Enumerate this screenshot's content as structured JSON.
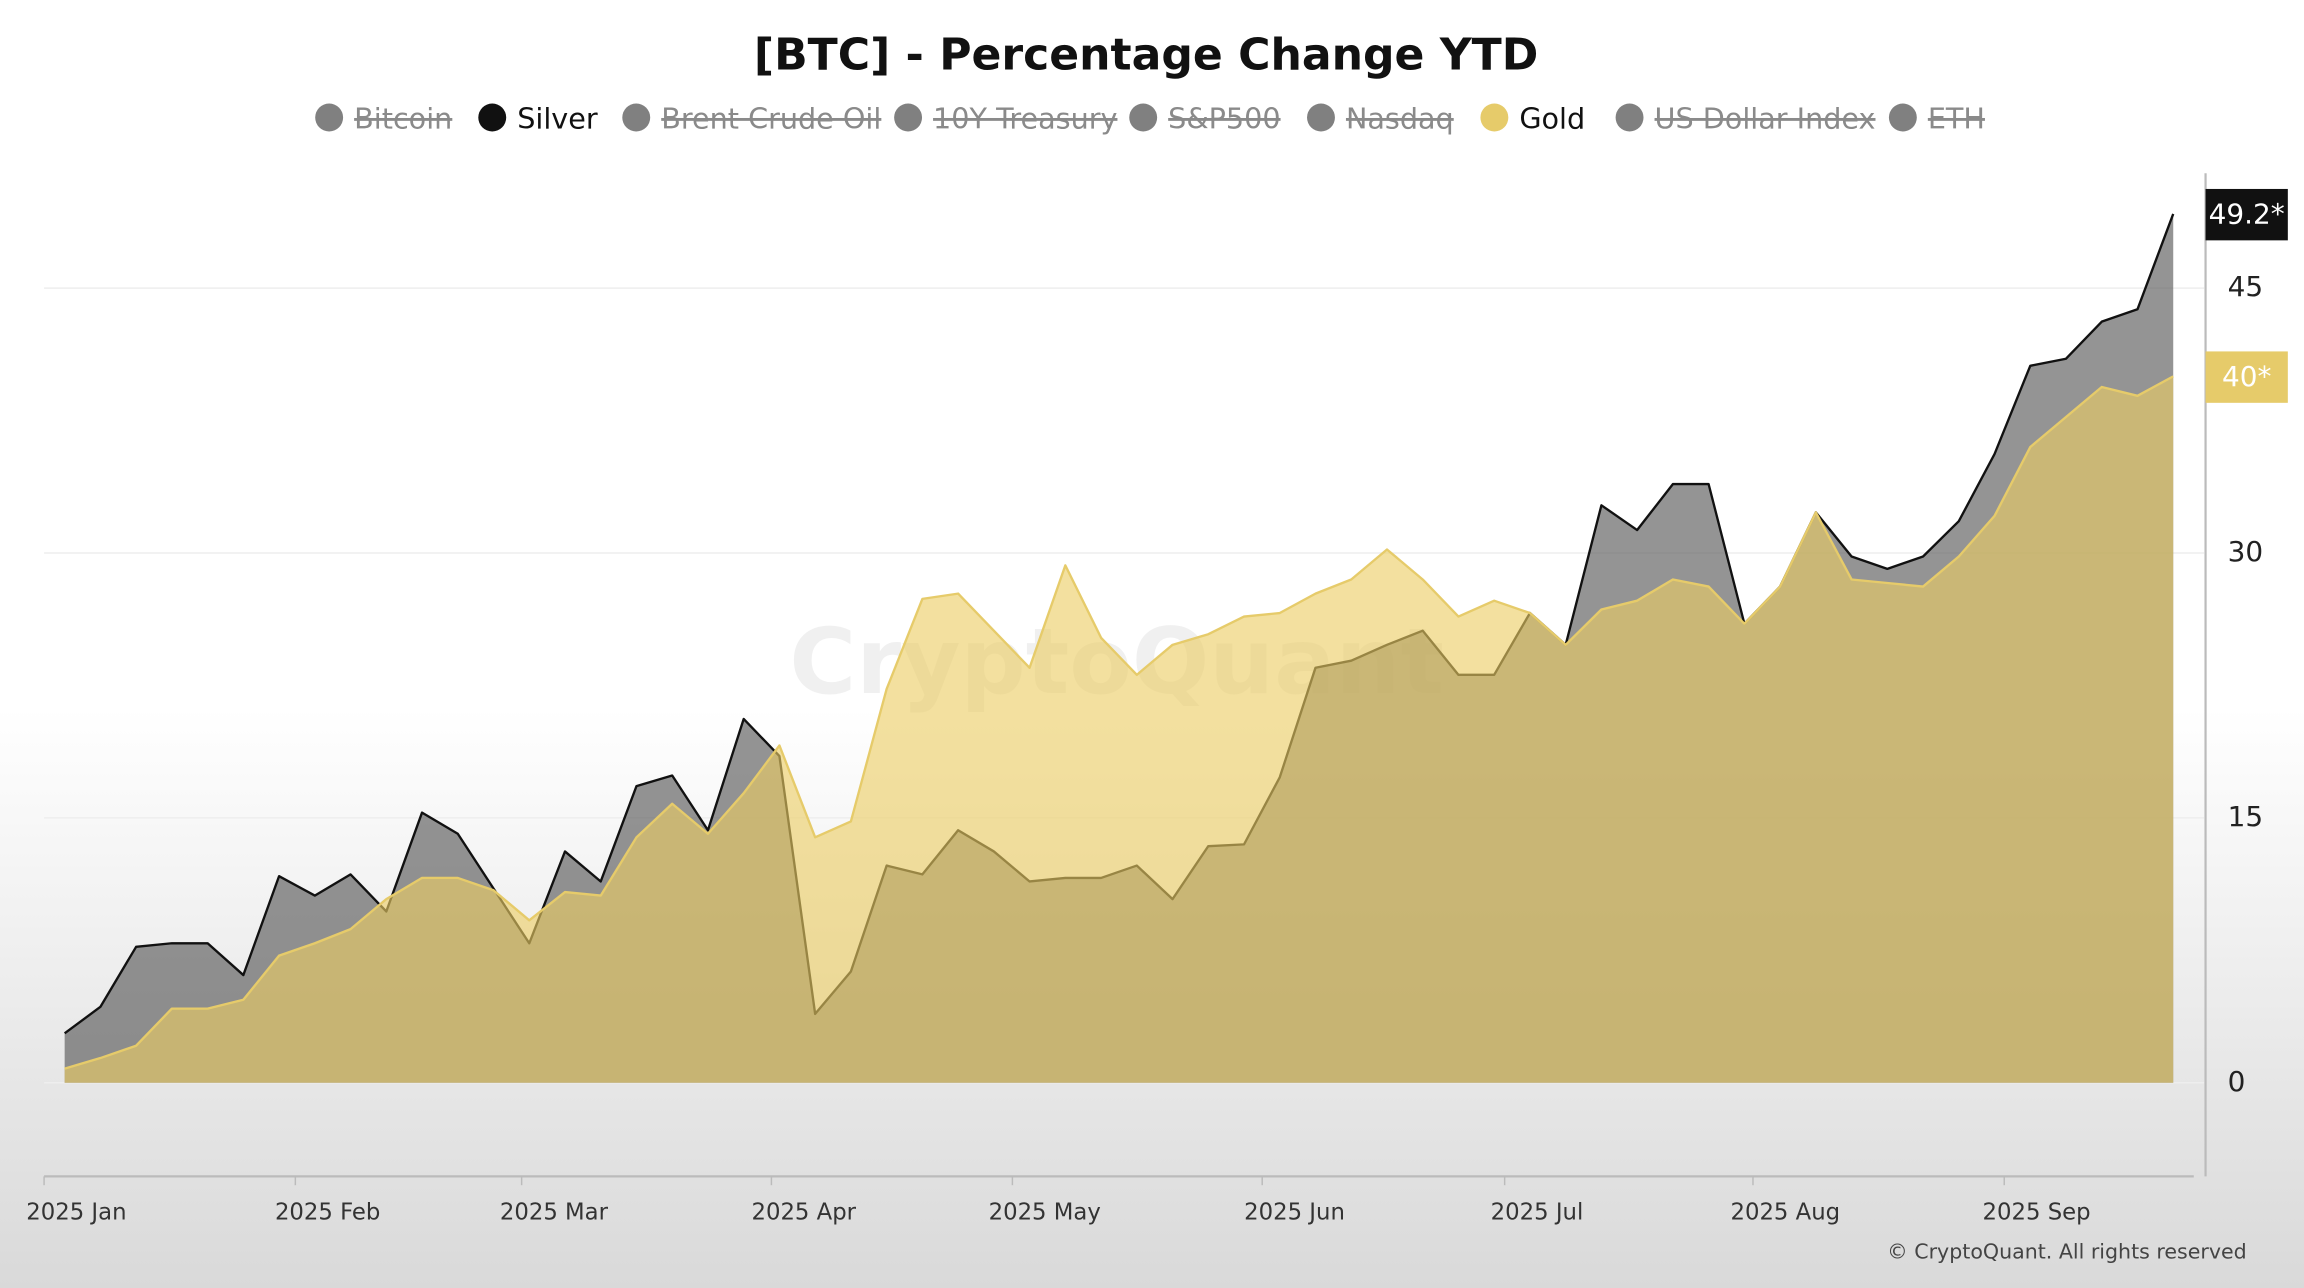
{
  "chart_data": {
    "type": "area",
    "title": "[BTC] - Percentage Change YTD",
    "xticks": [
      "2025 Jan",
      "2025 Feb",
      "2025 Mar",
      "2025 Apr",
      "2025 May",
      "2025 Jun",
      "2025 Jul",
      "2025 Aug",
      "2025 Sep"
    ],
    "ylim": [
      -5.3,
      51.5
    ],
    "yticks": [
      0,
      15,
      30,
      45
    ],
    "grid": true,
    "watermark": "CryptoQuant",
    "copyright": "© CryptoQuant. All rights reserved",
    "series": [
      {
        "name": "Bitcoin",
        "hidden": true
      },
      {
        "name": "Silver",
        "color": "#111111",
        "fill": "rgba(90,90,90,0.65)",
        "values": [
          2.8,
          4.3,
          7.7,
          7.9,
          7.9,
          6.1,
          11.7,
          10.6,
          11.8,
          9.7,
          15.3,
          14.1,
          11.0,
          7.9,
          13.1,
          11.4,
          16.8,
          17.4,
          14.3,
          20.6,
          18.5,
          3.9,
          6.3,
          12.3,
          11.8,
          14.3,
          13.1,
          11.4,
          11.6,
          11.6,
          12.3,
          10.4,
          13.4,
          13.5,
          17.3,
          23.5,
          23.9,
          24.8,
          25.6,
          23.1,
          23.1,
          26.6,
          24.8,
          32.7,
          31.3,
          33.9,
          33.9,
          26.0,
          28.1,
          32.3,
          29.8,
          29.1,
          29.8,
          31.8,
          35.6,
          40.6,
          41.0,
          43.1,
          43.8,
          49.2
        ],
        "end_label": "49.2*"
      },
      {
        "name": "Brent Crude Oil",
        "hidden": true
      },
      {
        "name": "10Y Treasury",
        "hidden": true
      },
      {
        "name": "S&P500",
        "hidden": true
      },
      {
        "name": "Nasdaq",
        "hidden": true
      },
      {
        "name": "Gold",
        "color": "#e6cb6a",
        "fill": "rgba(235,205,100,0.62)",
        "values": [
          0.8,
          1.4,
          2.1,
          4.2,
          4.2,
          4.7,
          7.2,
          7.9,
          8.7,
          10.4,
          11.6,
          11.6,
          10.9,
          9.2,
          10.8,
          10.6,
          13.9,
          15.8,
          14.1,
          16.4,
          19.1,
          13.9,
          14.8,
          22.3,
          27.4,
          27.7,
          25.6,
          23.5,
          29.3,
          25.2,
          23.1,
          24.8,
          25.4,
          26.4,
          26.6,
          27.7,
          28.5,
          30.2,
          28.5,
          26.4,
          27.3,
          26.6,
          24.8,
          26.8,
          27.3,
          28.5,
          28.1,
          26.0,
          28.1,
          32.3,
          28.5,
          28.3,
          28.1,
          29.8,
          32.1,
          36.0,
          37.7,
          39.4,
          38.9,
          40.0
        ],
        "end_label": "40*"
      },
      {
        "name": "US Dollar Index",
        "hidden": true
      },
      {
        "name": "ETH",
        "hidden": true
      }
    ]
  }
}
